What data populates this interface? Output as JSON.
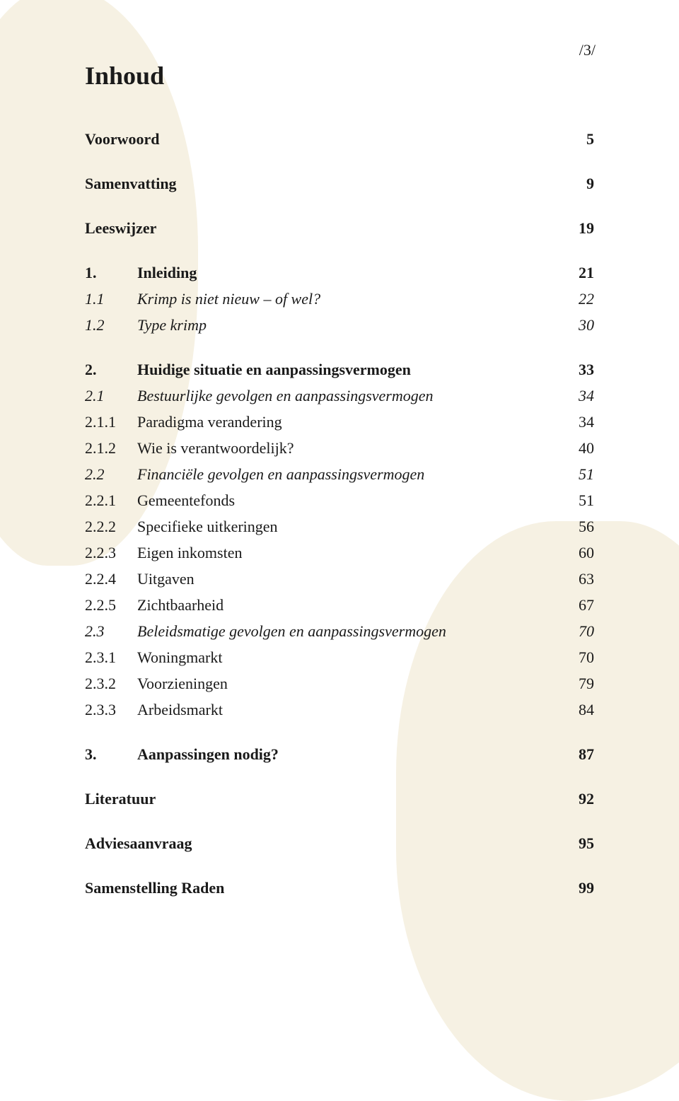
{
  "page_number": "/3/",
  "title": "Inhoud",
  "rows": [
    {
      "type": "row",
      "num": "",
      "label": "Voorwoord",
      "page": "5",
      "bold": true,
      "italic": false,
      "no_num": true
    },
    {
      "type": "gap"
    },
    {
      "type": "row",
      "num": "",
      "label": "Samenvatting",
      "page": "9",
      "bold": true,
      "italic": false,
      "no_num": true
    },
    {
      "type": "gap"
    },
    {
      "type": "row",
      "num": "",
      "label": "Leeswijzer",
      "page": "19",
      "bold": true,
      "italic": false,
      "no_num": true
    },
    {
      "type": "gap"
    },
    {
      "type": "row",
      "num": "1.",
      "label": "Inleiding",
      "page": "21",
      "bold": true,
      "italic": false
    },
    {
      "type": "row",
      "num": "1.1",
      "label": "Krimp is niet nieuw – of wel?",
      "page": "22",
      "bold": false,
      "italic": true
    },
    {
      "type": "row",
      "num": "1.2",
      "label": "Type krimp",
      "page": "30",
      "bold": false,
      "italic": true
    },
    {
      "type": "gap"
    },
    {
      "type": "row",
      "num": "2.",
      "label": "Huidige situatie en aanpassingsvermogen",
      "page": "33",
      "bold": true,
      "italic": false
    },
    {
      "type": "row",
      "num": "2.1",
      "label": "Bestuurlijke gevolgen en aanpassingsvermogen",
      "page": "34",
      "bold": false,
      "italic": true
    },
    {
      "type": "row",
      "num": "2.1.1",
      "label": "Paradigma verandering",
      "page": "34",
      "bold": false,
      "italic": false
    },
    {
      "type": "row",
      "num": "2.1.2",
      "label": "Wie is verantwoordelijk?",
      "page": "40",
      "bold": false,
      "italic": false
    },
    {
      "type": "row",
      "num": "2.2",
      "label": "Financiële gevolgen en aanpassingsvermogen",
      "page": "51",
      "bold": false,
      "italic": true
    },
    {
      "type": "row",
      "num": "2.2.1",
      "label": "Gemeentefonds",
      "page": "51",
      "bold": false,
      "italic": false
    },
    {
      "type": "row",
      "num": "2.2.2",
      "label": "Specifieke uitkeringen",
      "page": "56",
      "bold": false,
      "italic": false
    },
    {
      "type": "row",
      "num": "2.2.3",
      "label": "Eigen inkomsten",
      "page": "60",
      "bold": false,
      "italic": false
    },
    {
      "type": "row",
      "num": "2.2.4",
      "label": "Uitgaven",
      "page": "63",
      "bold": false,
      "italic": false
    },
    {
      "type": "row",
      "num": "2.2.5",
      "label": "Zichtbaarheid",
      "page": "67",
      "bold": false,
      "italic": false
    },
    {
      "type": "row",
      "num": "2.3",
      "label": "Beleidsmatige gevolgen en aanpassingsvermogen",
      "page": "70",
      "bold": false,
      "italic": true
    },
    {
      "type": "row",
      "num": "2.3.1",
      "label": "Woningmarkt",
      "page": "70",
      "bold": false,
      "italic": false
    },
    {
      "type": "row",
      "num": "2.3.2",
      "label": "Voorzieningen",
      "page": "79",
      "bold": false,
      "italic": false
    },
    {
      "type": "row",
      "num": "2.3.3",
      "label": "Arbeidsmarkt",
      "page": "84",
      "bold": false,
      "italic": false
    },
    {
      "type": "gap"
    },
    {
      "type": "row",
      "num": "3.",
      "label": "Aanpassingen nodig?",
      "page": "87",
      "bold": true,
      "italic": false
    },
    {
      "type": "gap"
    },
    {
      "type": "row",
      "num": "",
      "label": "Literatuur",
      "page": "92",
      "bold": true,
      "italic": false,
      "no_num": true
    },
    {
      "type": "gap"
    },
    {
      "type": "row",
      "num": "",
      "label": "Adviesaanvraag",
      "page": "95",
      "bold": true,
      "italic": false,
      "no_num": true
    },
    {
      "type": "gap"
    },
    {
      "type": "row",
      "num": "",
      "label": "Samenstelling Raden",
      "page": "99",
      "bold": true,
      "italic": false,
      "no_num": true
    }
  ]
}
